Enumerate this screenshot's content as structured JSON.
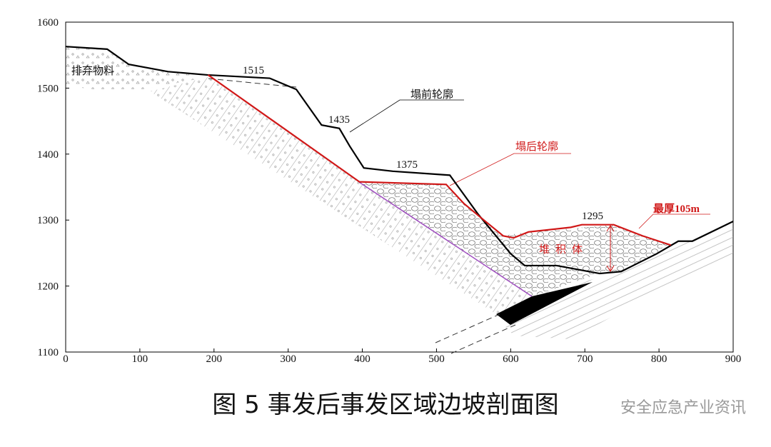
{
  "chart_data": {
    "type": "line",
    "title": "图 5 事发后事发区域边坡剖面图",
    "watermark": "安全应急产业资讯",
    "xlim": [
      0,
      900
    ],
    "xticks": [
      0,
      100,
      200,
      300,
      400,
      500,
      600,
      700,
      800,
      900
    ],
    "ylim": [
      1100,
      1600
    ],
    "yticks": [
      1100,
      1200,
      1300,
      1400,
      1500,
      1600
    ],
    "series": [
      {
        "name": "塌前轮廓",
        "color": "#000000",
        "x": [
          0,
          56,
          85,
          138,
          191,
          275,
          311,
          345,
          369,
          383,
          402,
          441,
          518,
          556,
          600,
          619,
          662,
          720,
          749,
          797,
          826,
          845,
          900
        ],
        "values": [
          1563,
          1559,
          1536,
          1525,
          1520,
          1515,
          1498,
          1444,
          1439,
          1412,
          1379,
          1374,
          1368,
          1309,
          1249,
          1231,
          1231,
          1219,
          1222,
          1249,
          1268,
          1268,
          1298
        ]
      },
      {
        "name": "塌后轮廓",
        "color": "#d01818",
        "x": [
          192,
          396,
          513,
          537,
          566,
          590,
          604,
          624,
          681,
          696,
          739,
          778,
          816
        ],
        "values": [
          1520,
          1358,
          1354,
          1325,
          1298,
          1276,
          1273,
          1282,
          1289,
          1293,
          1293,
          1276,
          1262
        ]
      }
    ],
    "annotations": [
      "1515",
      "1435",
      "1375",
      "1295",
      "最厚105m",
      "堆积体",
      "排弃物料"
    ]
  }
}
